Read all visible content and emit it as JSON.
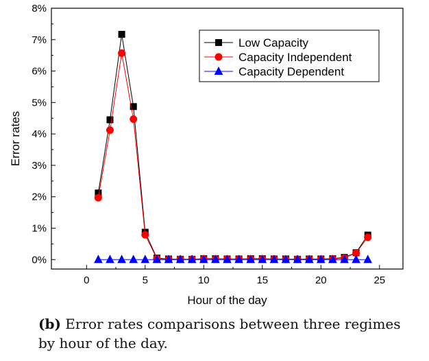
{
  "chart_data": {
    "type": "line",
    "xlabel": "Hour of the day",
    "ylabel": "Error rates",
    "xlim": [
      -3,
      27
    ],
    "ylim": [
      -0.3,
      8
    ],
    "xticks": [
      0,
      5,
      10,
      15,
      20,
      25
    ],
    "xtick_labels": [
      "0",
      "5",
      "10",
      "15",
      "20",
      "25"
    ],
    "yticks": [
      0,
      1,
      2,
      3,
      4,
      5,
      6,
      7,
      8
    ],
    "ytick_labels": [
      "0%",
      "1%",
      "2%",
      "3%",
      "4%",
      "5%",
      "6%",
      "7%",
      "8%"
    ],
    "x": [
      1,
      2,
      3,
      4,
      5,
      6,
      7,
      8,
      9,
      10,
      11,
      12,
      13,
      14,
      15,
      16,
      17,
      18,
      19,
      20,
      21,
      22,
      23,
      24
    ],
    "legend_position": "top-right",
    "series": [
      {
        "name": "Low Capacity",
        "marker": "square",
        "color": "#000000",
        "values": [
          2.12,
          4.45,
          7.17,
          4.87,
          0.87,
          0.05,
          0.02,
          0.01,
          0.01,
          0.03,
          0.03,
          0.02,
          0.02,
          0.03,
          0.03,
          0.02,
          0.02,
          0.01,
          0.02,
          0.02,
          0.03,
          0.07,
          0.22,
          0.78
        ]
      },
      {
        "name": "Capacity Independent",
        "marker": "circle",
        "color": "#ff0000",
        "values": [
          1.97,
          4.12,
          6.57,
          4.47,
          0.79,
          0.03,
          0.01,
          0.01,
          0.01,
          0.02,
          0.02,
          0.02,
          0.02,
          0.02,
          0.02,
          0.02,
          0.01,
          0.01,
          0.01,
          0.01,
          0.02,
          0.05,
          0.21,
          0.71
        ]
      },
      {
        "name": "Capacity Dependent",
        "marker": "triangle",
        "color": "#0000ff",
        "values": [
          0,
          0,
          0,
          0,
          0,
          0,
          0,
          0,
          0,
          0,
          0,
          0,
          0,
          0,
          0,
          0,
          0,
          0,
          0,
          0,
          0,
          0,
          0,
          0
        ]
      }
    ]
  },
  "caption": {
    "tag": "(b)",
    "text": " Error rates comparisons between three regimes by hour of the day."
  }
}
